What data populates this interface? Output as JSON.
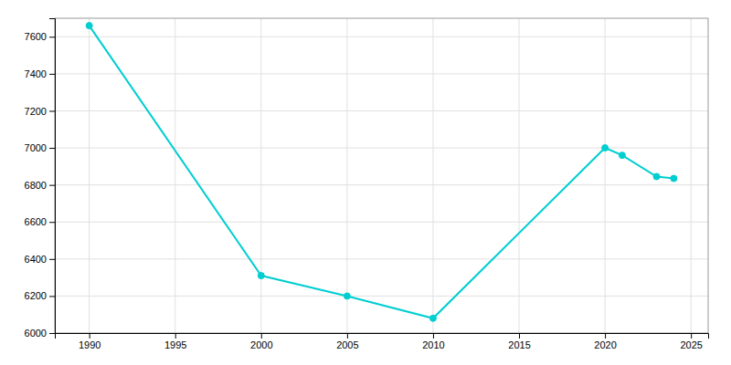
{
  "chart_data": {
    "type": "line",
    "x": [
      1990,
      2000,
      2005,
      2010,
      2020,
      2021,
      2023,
      2024
    ],
    "values": [
      7660,
      6310,
      6200,
      6080,
      7000,
      6960,
      6845,
      6835
    ],
    "color": "#00CED1",
    "marker": "circle",
    "xlim": [
      1988,
      2026
    ],
    "ylim": [
      6000,
      7700
    ],
    "xticks": [
      1990,
      1995,
      2000,
      2005,
      2010,
      2015,
      2020,
      2025
    ],
    "yticks": [
      6000,
      6200,
      6400,
      6600,
      6800,
      7000,
      7200,
      7400,
      7600
    ],
    "grid": true
  }
}
